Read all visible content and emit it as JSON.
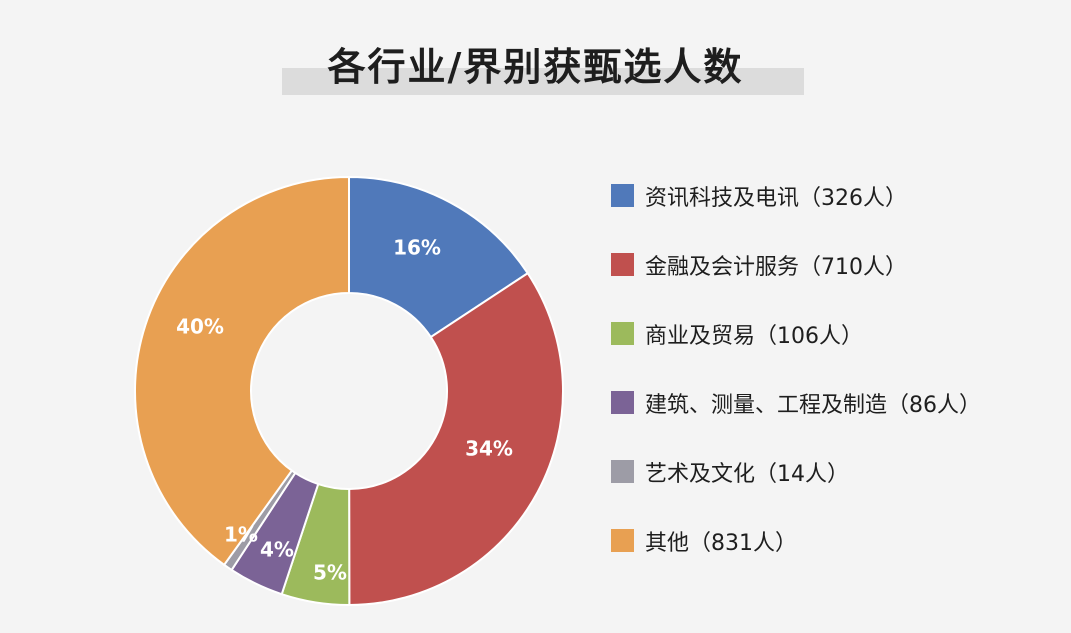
{
  "chart_data": {
    "type": "pie",
    "title": "各行业/界别获甄选人数",
    "slices": [
      {
        "name": "资讯科技及电讯",
        "count_label": "（326人）",
        "value": 326,
        "percent_label": "16%",
        "color": "#5079ba"
      },
      {
        "name": "金融及会计服务",
        "count_label": "（710人）",
        "value": 710,
        "percent_label": "34%",
        "color": "#c0504e"
      },
      {
        "name": "商业及贸易",
        "count_label": "（106人）",
        "value": 106,
        "percent_label": "5%",
        "color": "#9cba5c"
      },
      {
        "name": "建筑、测量、工程及制造",
        "count_label": "（86人）",
        "value": 86,
        "percent_label": "4%",
        "color": "#7b6396"
      },
      {
        "name": "艺术及文化",
        "count_label": "（14人）",
        "value": 14,
        "percent_label": "1%",
        "color": "#9d9ca6"
      },
      {
        "name": "其他",
        "count_label": "（831人）",
        "value": 831,
        "percent_label": "40%",
        "color": "#e8a052"
      }
    ],
    "legend_position": "right",
    "donut": true
  }
}
